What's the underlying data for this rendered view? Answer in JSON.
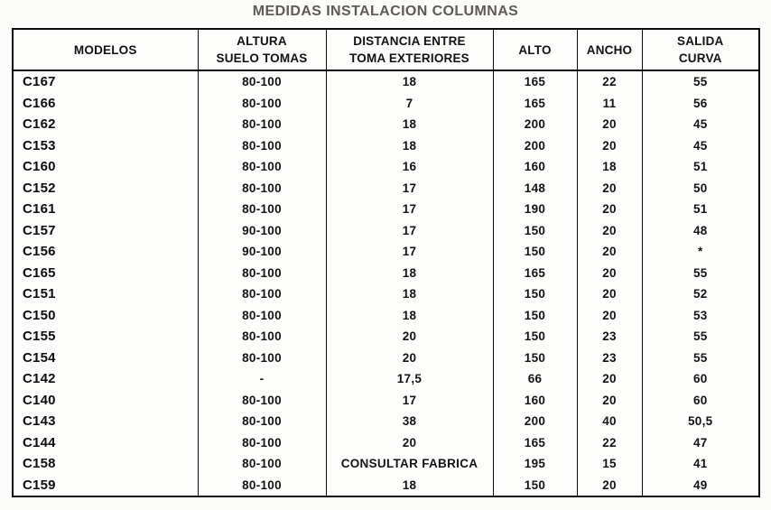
{
  "page": {
    "title": "MEDIDAS INSTALACION COLUMNAS",
    "title_color": "#5d5a57",
    "border_color": "#0a0a0a",
    "background_color": "#fcfcfa",
    "text_color": "#141414"
  },
  "table": {
    "columns": [
      {
        "id": "modelos",
        "label_lines": [
          "MODELOS"
        ]
      },
      {
        "id": "altura",
        "label_lines": [
          "ALTURA",
          "SUELO TOMAS"
        ]
      },
      {
        "id": "distancia",
        "label_lines": [
          "DISTANCIA ENTRE",
          "TOMA EXTERIORES"
        ]
      },
      {
        "id": "alto",
        "label_lines": [
          "ALTO"
        ]
      },
      {
        "id": "ancho",
        "label_lines": [
          "ANCHO"
        ]
      },
      {
        "id": "salida",
        "label_lines": [
          "SALIDA",
          "CURVA"
        ]
      }
    ],
    "rows": [
      [
        "C167",
        "80-100",
        "18",
        "165",
        "22",
        "55"
      ],
      [
        "C166",
        "80-100",
        "7",
        "165",
        "11",
        "56"
      ],
      [
        "C162",
        "80-100",
        "18",
        "200",
        "20",
        "45"
      ],
      [
        "C153",
        "80-100",
        "18",
        "200",
        "20",
        "45"
      ],
      [
        "C160",
        "80-100",
        "16",
        "160",
        "18",
        "51"
      ],
      [
        "C152",
        "80-100",
        "17",
        "148",
        "20",
        "50"
      ],
      [
        "C161",
        "80-100",
        "17",
        "190",
        "20",
        "51"
      ],
      [
        "C157",
        "90-100",
        "17",
        "150",
        "20",
        "48"
      ],
      [
        "C156",
        "90-100",
        "17",
        "150",
        "20",
        "*"
      ],
      [
        "C165",
        "80-100",
        "18",
        "165",
        "20",
        "55"
      ],
      [
        "C151",
        "80-100",
        "18",
        "150",
        "20",
        "52"
      ],
      [
        "C150",
        "80-100",
        "18",
        "150",
        "20",
        "53"
      ],
      [
        "C155",
        "80-100",
        "20",
        "150",
        "23",
        "55"
      ],
      [
        "C154",
        "80-100",
        "20",
        "150",
        "23",
        "55"
      ],
      [
        "C142",
        "-",
        "17,5",
        "66",
        "20",
        "60"
      ],
      [
        "C140",
        "80-100",
        "17",
        "160",
        "20",
        "60"
      ],
      [
        "C143",
        "80-100",
        "38",
        "200",
        "40",
        "50,5"
      ],
      [
        "C144",
        "80-100",
        "20",
        "165",
        "22",
        "47"
      ],
      [
        "C158",
        "80-100",
        "CONSULTAR FABRICA",
        "195",
        "15",
        "41"
      ],
      [
        "C159",
        "80-100",
        "18",
        "150",
        "20",
        "49"
      ]
    ]
  }
}
